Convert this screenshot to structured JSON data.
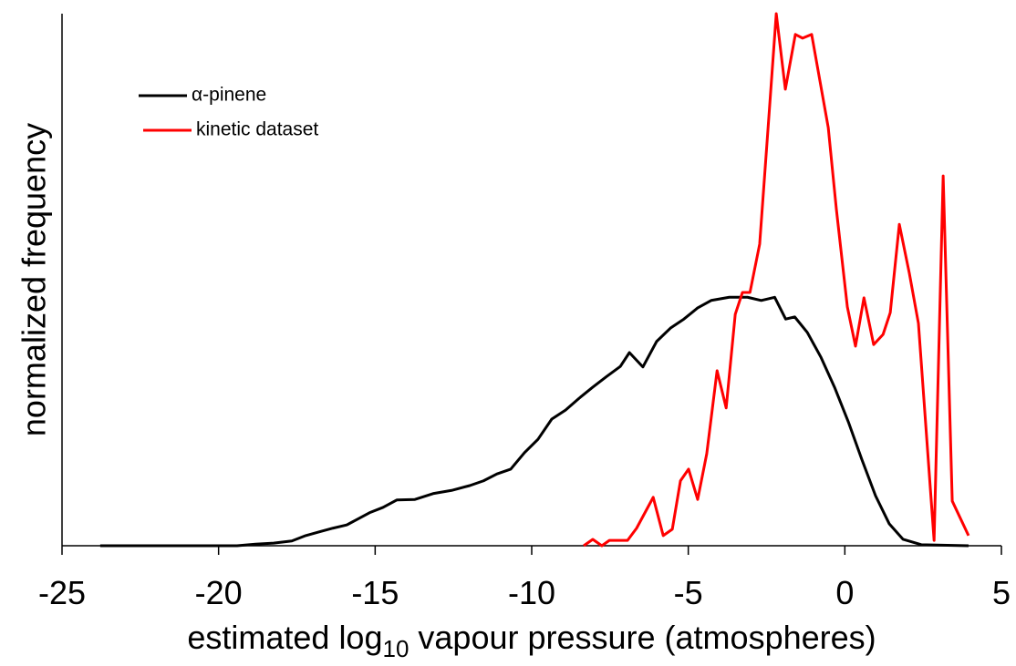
{
  "chart_data": {
    "type": "line",
    "y_label": "normalized frequency",
    "x_label": [
      "estimated log",
      "10",
      " vapour pressure (atmospheres)"
    ],
    "xlim": [
      -25,
      5
    ],
    "xticks": [
      -25,
      -20,
      -15,
      -10,
      -5,
      0,
      5
    ],
    "ylim": [
      0,
      1
    ],
    "legend": "upper left",
    "series": [
      {
        "name": "α-pinene",
        "color": "#000000",
        "x": [
          -23.78,
          -19.41,
          -18.82,
          -18.24,
          -17.66,
          -17.22,
          -16.79,
          -16.35,
          -15.91,
          -15.56,
          -15.18,
          -14.75,
          -14.31,
          -13.73,
          -13.15,
          -12.56,
          -11.98,
          -11.54,
          -11.11,
          -10.67,
          -10.23,
          -9.8,
          -9.36,
          -8.92,
          -8.49,
          -8.05,
          -7.61,
          -7.17,
          -6.88,
          -6.45,
          -6.01,
          -5.57,
          -5.14,
          -4.7,
          -4.27,
          -3.69,
          -3.11,
          -2.67,
          -2.24,
          -1.89,
          -1.6,
          -1.2,
          -0.77,
          -0.33,
          0.11,
          0.55,
          0.98,
          1.42,
          1.86,
          2.44,
          3.95
        ],
        "values": [
          0,
          0,
          0.003,
          0.005,
          0.009,
          0.019,
          0.026,
          0.033,
          0.039,
          0.05,
          0.062,
          0.072,
          0.086,
          0.087,
          0.098,
          0.104,
          0.113,
          0.122,
          0.135,
          0.144,
          0.175,
          0.2,
          0.238,
          0.255,
          0.277,
          0.298,
          0.318,
          0.337,
          0.363,
          0.336,
          0.384,
          0.409,
          0.426,
          0.447,
          0.461,
          0.467,
          0.467,
          0.461,
          0.467,
          0.426,
          0.43,
          0.401,
          0.355,
          0.298,
          0.233,
          0.161,
          0.094,
          0.041,
          0.012,
          0.002,
          0
        ]
      },
      {
        "name": " kinetic dataset",
        "color": "#ff0000",
        "x": [
          -8.34,
          -8.05,
          -7.76,
          -7.52,
          -6.94,
          -6.65,
          -6.12,
          -5.8,
          -5.51,
          -5.25,
          -4.99,
          -4.7,
          -4.41,
          -4.08,
          -3.79,
          -3.5,
          -3.27,
          -3.03,
          -2.72,
          -2.43,
          -2.19,
          -1.9,
          -1.58,
          -1.35,
          -1.06,
          -0.53,
          -0.27,
          0.08,
          0.34,
          0.61,
          0.92,
          1.22,
          1.45,
          1.74,
          2.06,
          2.35,
          2.85,
          3.14,
          3.43,
          3.95
        ],
        "values": [
          0,
          0.012,
          0,
          0.01,
          0.01,
          0.033,
          0.091,
          0.019,
          0.031,
          0.122,
          0.144,
          0.087,
          0.173,
          0.329,
          0.259,
          0.435,
          0.476,
          0.476,
          0.567,
          0.803,
          1.0,
          0.858,
          0.961,
          0.954,
          0.961,
          0.786,
          0.632,
          0.449,
          0.375,
          0.466,
          0.378,
          0.397,
          0.438,
          0.604,
          0.512,
          0.418,
          0.01,
          0.695,
          0.084,
          0.019
        ]
      }
    ]
  }
}
